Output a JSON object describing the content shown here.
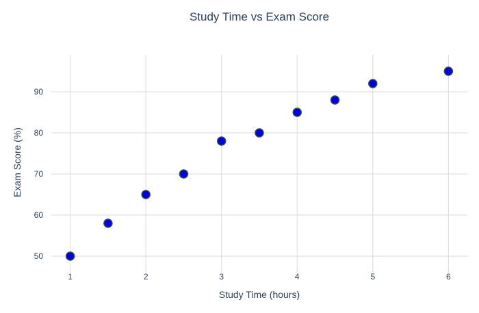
{
  "chart_data": {
    "type": "scatter",
    "title": "Study Time vs Exam Score",
    "xlabel": "Study Time (hours)",
    "ylabel": "Exam Score (%)",
    "x": [
      1,
      1.5,
      2,
      2.5,
      3,
      3.5,
      4,
      4.5,
      5,
      6
    ],
    "y": [
      50,
      58,
      65,
      70,
      78,
      80,
      85,
      88,
      92,
      95
    ],
    "xlim": [
      0.75,
      6.25
    ],
    "ylim": [
      46,
      99
    ],
    "xticks": [
      1,
      2,
      3,
      4,
      5,
      6
    ],
    "yticks": [
      50,
      60,
      70,
      80,
      90
    ],
    "grid": true,
    "marker_color": "#0000e0",
    "marker_edge_color": "#2f4f4f"
  }
}
